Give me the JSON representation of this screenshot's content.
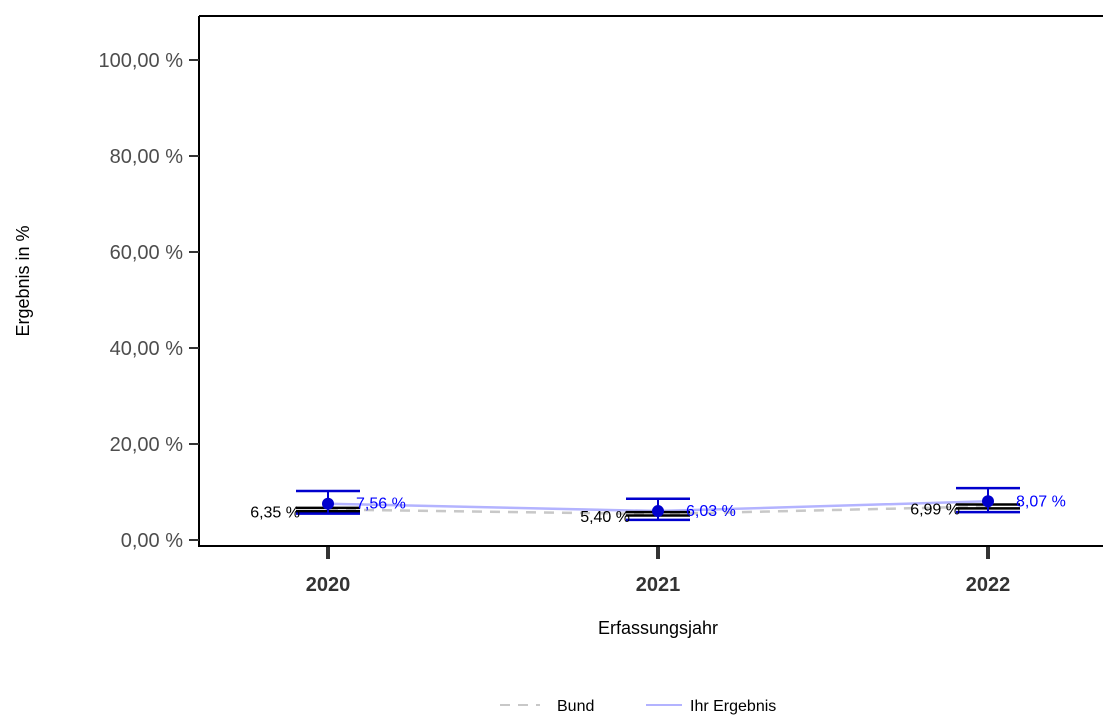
{
  "chart_data": {
    "type": "line",
    "xlabel": "Erfassungsjahr",
    "ylabel": "Ergebnis in %",
    "categories": [
      "2020",
      "2021",
      "2022"
    ],
    "ylim": [
      0,
      100
    ],
    "yticks": [
      0,
      20,
      40,
      60,
      80,
      100
    ],
    "ytick_labels": [
      "0,00 %",
      "20,00 %",
      "40,00 %",
      "60,00 %",
      "80,00 %",
      "100,00 %"
    ],
    "grid": false,
    "legend_position": "bottom",
    "series": [
      {
        "name": "Bund",
        "color": "#c8c8c8",
        "line_style": "dashed",
        "values": [
          6.35,
          5.4,
          6.99
        ],
        "labels": [
          "6,35 %",
          "5,40 %",
          "6,99 %"
        ],
        "ci_lower": [
          6.0,
          5.1,
          6.6
        ],
        "ci_upper": [
          6.7,
          5.8,
          7.4
        ],
        "error_bar_color": "#000000"
      },
      {
        "name": "Ihr Ergebnis",
        "color": "#b3b3ff",
        "line_style": "solid",
        "point_color": "#0000cd",
        "values": [
          7.56,
          6.03,
          8.07
        ],
        "labels": [
          "7,56 %",
          "6,03 %",
          "8,07 %"
        ],
        "ci_lower": [
          5.5,
          4.2,
          5.8
        ],
        "ci_upper": [
          10.2,
          8.6,
          10.8
        ],
        "error_bar_color": "#0000cd",
        "label_color": "#0000ff"
      }
    ]
  }
}
